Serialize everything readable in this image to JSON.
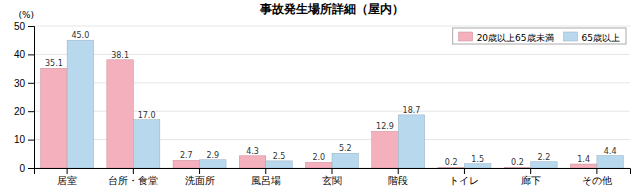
{
  "chart_data": {
    "type": "bar",
    "title": "事故発生場所詳細（屋内）",
    "ylabel": "(%)",
    "categories": [
      "居室",
      "台所・食堂",
      "洗面所",
      "風呂場",
      "玄関",
      "階段",
      "トイレ",
      "廊下",
      "その他"
    ],
    "series": [
      {
        "name": "20歳以上65歳未満",
        "color": "#f4b0bc",
        "values": [
          35.1,
          38.1,
          2.7,
          4.3,
          2.0,
          12.9,
          0.2,
          0.2,
          1.4
        ],
        "value_labels": [
          "35.1",
          "38.1",
          "2.7",
          "4.3",
          "2.0",
          "12.9",
          "0.2",
          "0.2",
          "1.4"
        ]
      },
      {
        "name": "65歳以上",
        "color": "#b8d8ee",
        "values": [
          45.0,
          17.0,
          2.9,
          2.5,
          5.2,
          18.7,
          1.5,
          2.2,
          4.4
        ],
        "value_labels": [
          "45.0",
          "17.0",
          "2.9",
          "2.5",
          "5.2",
          "18.7",
          "1.5",
          "2.2",
          "4.4"
        ]
      }
    ],
    "ylim": [
      0,
      50
    ],
    "yticks": [
      0,
      10,
      20,
      30,
      40,
      50
    ],
    "grid": true,
    "legend": "upper right",
    "data_labels": true
  }
}
